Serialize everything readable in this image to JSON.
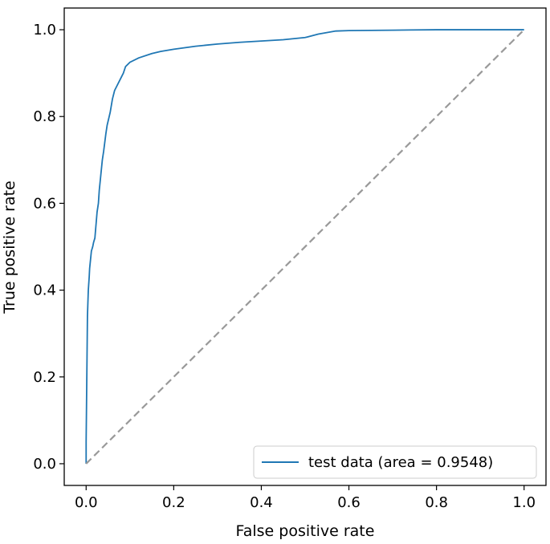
{
  "chart_data": {
    "type": "line",
    "title": "",
    "xlabel": "False positive rate",
    "ylabel": "True positive rate",
    "xlim": [
      -0.05,
      1.05
    ],
    "ylim": [
      -0.05,
      1.05
    ],
    "xticks": [
      "0.0",
      "0.2",
      "0.4",
      "0.6",
      "0.8",
      "1.0"
    ],
    "yticks": [
      "0.0",
      "0.2",
      "0.4",
      "0.6",
      "0.8",
      "1.0"
    ],
    "grid": false,
    "legend": {
      "position": "bottom-right",
      "entries": [
        "test data (area = 0.9548)"
      ]
    },
    "series": [
      {
        "name": "test data (area = 0.9548)",
        "color": "#1f77b4",
        "style": "solid",
        "x": [
          0.0,
          0.0,
          0.002,
          0.003,
          0.004,
          0.005,
          0.007,
          0.008,
          0.01,
          0.012,
          0.015,
          0.017,
          0.02,
          0.025,
          0.028,
          0.03,
          0.035,
          0.037,
          0.04,
          0.045,
          0.048,
          0.055,
          0.06,
          0.065,
          0.07,
          0.08,
          0.085,
          0.09,
          0.1,
          0.12,
          0.15,
          0.17,
          0.2,
          0.25,
          0.3,
          0.35,
          0.4,
          0.45,
          0.5,
          0.53,
          0.57,
          0.6,
          0.7,
          0.8,
          1.0
        ],
        "y": [
          0.0,
          0.05,
          0.24,
          0.34,
          0.37,
          0.4,
          0.43,
          0.45,
          0.47,
          0.49,
          0.5,
          0.51,
          0.52,
          0.58,
          0.6,
          0.63,
          0.68,
          0.7,
          0.72,
          0.76,
          0.78,
          0.81,
          0.84,
          0.86,
          0.87,
          0.89,
          0.9,
          0.915,
          0.925,
          0.935,
          0.945,
          0.95,
          0.955,
          0.962,
          0.967,
          0.971,
          0.974,
          0.977,
          0.982,
          0.99,
          0.997,
          0.998,
          0.999,
          1.0,
          1.0
        ]
      },
      {
        "name": "",
        "color": "#999999",
        "style": "dashed",
        "x": [
          0.0,
          1.0
        ],
        "y": [
          0.0,
          1.0
        ]
      }
    ]
  }
}
